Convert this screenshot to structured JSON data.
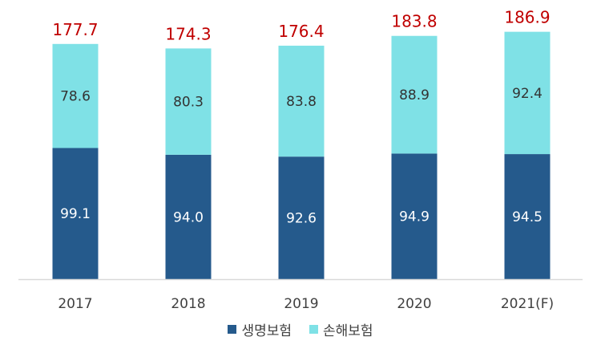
{
  "chart_data": {
    "type": "bar",
    "stacked": true,
    "categories": [
      "2017",
      "2018",
      "2019",
      "2020",
      "2021(F)"
    ],
    "series": [
      {
        "name": "생명보험",
        "values": [
          99.1,
          94.0,
          92.6,
          94.9,
          94.5
        ],
        "color": "#255A8C",
        "label_color": "#ffffff"
      },
      {
        "name": "손해보험",
        "values": [
          78.6,
          80.3,
          83.8,
          88.9,
          92.4
        ],
        "color": "#7FE1E6",
        "label_color": "#333333"
      }
    ],
    "totals": [
      177.7,
      174.3,
      176.4,
      183.8,
      186.9
    ],
    "total_color": "#C00000",
    "ylim": [
      0,
      200
    ],
    "grid": false,
    "legend_position": "bottom"
  }
}
